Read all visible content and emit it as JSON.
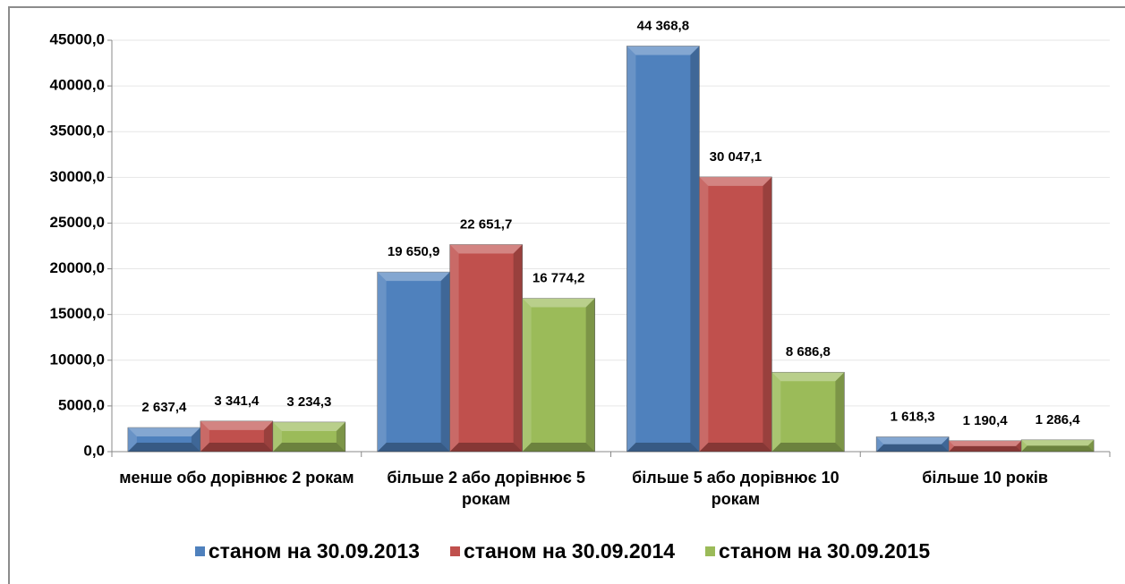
{
  "chart_data": {
    "type": "bar",
    "categories": [
      "менше обо дорівнює 2 рокам",
      "більше 2 або дорівнює 5 рокам",
      "більше 5 або дорівнює 10 рокам",
      "більше 10 років"
    ],
    "series": [
      {
        "name": "станом на 30.09.2013",
        "color": "#4f81bd",
        "values": [
          2637.4,
          19650.9,
          44368.8,
          1618.3
        ],
        "value_labels": [
          "2 637,4",
          "19 650,9",
          "44 368,8",
          "1 618,3"
        ]
      },
      {
        "name": "станом на 30.09.2014",
        "color": "#c0504d",
        "values": [
          3341.4,
          22651.7,
          30047.1,
          1190.4
        ],
        "value_labels": [
          "3 341,4",
          "22 651,7",
          "30 047,1",
          "1 190,4"
        ]
      },
      {
        "name": "станом на 30.09.2015",
        "color": "#9bbb59",
        "values": [
          3234.3,
          16774.2,
          8686.8,
          1286.4
        ],
        "value_labels": [
          "3 234,3",
          "16 774,2",
          "8 686,8",
          "1 286,4"
        ]
      }
    ],
    "ylim": [
      0,
      45000
    ],
    "yticks": [
      {
        "value": 0,
        "label": "0,0"
      },
      {
        "value": 5000,
        "label": "5000,0"
      },
      {
        "value": 10000,
        "label": "10000,0"
      },
      {
        "value": 15000,
        "label": "15000,0"
      },
      {
        "value": 20000,
        "label": "20000,0"
      },
      {
        "value": 25000,
        "label": "25000,0"
      },
      {
        "value": 30000,
        "label": "30000,0"
      },
      {
        "value": 35000,
        "label": "35000,0"
      },
      {
        "value": 40000,
        "label": "40000,0"
      },
      {
        "value": 45000,
        "label": "45000,0"
      }
    ],
    "grid": true,
    "legend": "bottom"
  }
}
